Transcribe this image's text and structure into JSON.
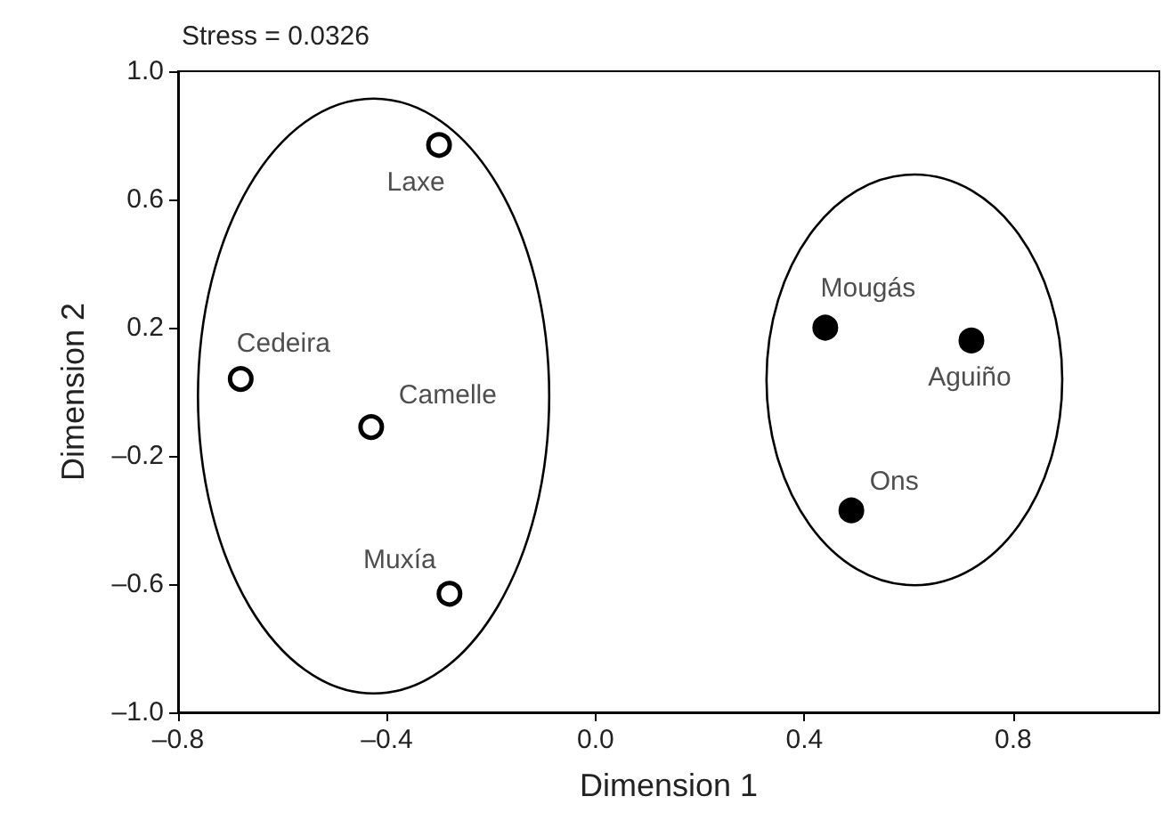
{
  "chart_data": {
    "type": "scatter",
    "title": "Stress = 0.0326",
    "xlabel": "Dimension 1",
    "ylabel": "Dimension 2",
    "series": [
      {
        "color": "#ffffff",
        "x": [
          -0.3,
          -0.68,
          -0.43,
          -0.28
        ],
        "values": [
          0.77,
          0.04,
          -0.11,
          -0.63
        ]
      },
      {
        "color": "#000000",
        "x": [
          0.44,
          0.72,
          0.49
        ],
        "values": [
          0.2,
          0.16,
          -0.37
        ]
      }
    ],
    "annotations": [
      {
        "text": "Laxe",
        "x": -0.3,
        "y": 0.77
      },
      {
        "text": "Cedeira",
        "x": -0.68,
        "y": 0.04
      },
      {
        "text": "Camelle",
        "x": -0.43,
        "y": -0.11
      },
      {
        "text": "Muxía",
        "x": -0.28,
        "y": -0.63
      },
      {
        "text": "Mougás",
        "x": 0.44,
        "y": 0.2
      },
      {
        "text": "Aguiño",
        "x": 0.72,
        "y": 0.16
      },
      {
        "text": "Ons",
        "x": 0.49,
        "y": -0.37
      }
    ],
    "xlim": [
      -0.8,
      1.08
    ],
    "ylim": [
      -1.0,
      1.0
    ],
    "xticks": [
      {
        "value": -0.8,
        "label": "–0.8"
      },
      {
        "value": -0.4,
        "label": "–0.4"
      },
      {
        "value": 0,
        "label": "0.0"
      },
      {
        "value": 0.4,
        "label": "0.4"
      },
      {
        "value": 0.8,
        "label": "0.8"
      }
    ],
    "yticks": [
      {
        "value": -1,
        "label": "–1.0"
      },
      {
        "value": -0.6,
        "label": "–0.6"
      },
      {
        "value": -0.2,
        "label": "–0.2"
      },
      {
        "value": 0.2,
        "label": "0.2"
      },
      {
        "value": 0.6,
        "label": "0.6"
      },
      {
        "value": 1,
        "label": "1.0"
      }
    ],
    "grid": false,
    "marker": "circle"
  }
}
